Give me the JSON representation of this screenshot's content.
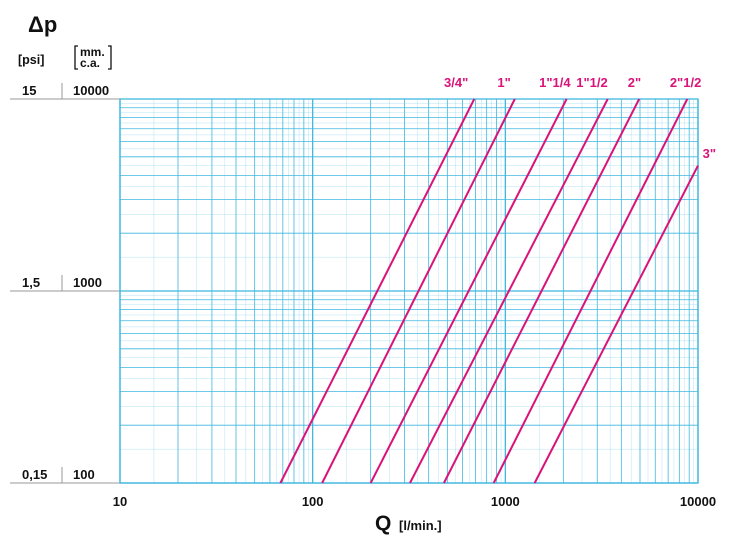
{
  "chart_data": {
    "type": "line",
    "title": "",
    "ylabel_symbol": "Δp",
    "y_unit_psi": "[psi]",
    "y_unit_mmca_line1": "mm.",
    "y_unit_mmca_line2": "c.a.",
    "xlabel": "Q",
    "xlabel_unit": "[l/min.]",
    "x_scale": "log",
    "y_scale": "log",
    "xlim": [
      10,
      10000
    ],
    "ylim": [
      100,
      10000
    ],
    "grid": true,
    "x_ticks": [
      {
        "value": 10,
        "label": "10"
      },
      {
        "value": 100,
        "label": "100"
      },
      {
        "value": 1000,
        "label": "1000"
      },
      {
        "value": 10000,
        "label": "10000"
      }
    ],
    "y_ticks": [
      {
        "value": 100,
        "label_psi": "0,15",
        "label_mmca": "100"
      },
      {
        "value": 1000,
        "label_psi": "1,5",
        "label_mmca": "1000"
      },
      {
        "value": 10000,
        "label_psi": "15",
        "label_mmca": "10000"
      }
    ],
    "series": [
      {
        "name": "3/4\"",
        "x": [
          68,
          690
        ],
        "y": [
          100,
          10000
        ]
      },
      {
        "name": "1\"",
        "x": [
          112,
          1120
        ],
        "y": [
          100,
          10000
        ]
      },
      {
        "name": "1\"1/4",
        "x": [
          200,
          2080
        ],
        "y": [
          100,
          10000
        ]
      },
      {
        "name": "1\"1/2",
        "x": [
          320,
          3400
        ],
        "y": [
          100,
          10000
        ]
      },
      {
        "name": "2\"",
        "x": [
          480,
          4950
        ],
        "y": [
          100,
          10000
        ]
      },
      {
        "name": "2\"1/2",
        "x": [
          870,
          8800
        ],
        "y": [
          100,
          10000
        ]
      },
      {
        "name": "3\"",
        "x": [
          1420,
          10000
        ],
        "y": [
          100,
          4500
        ]
      }
    ]
  },
  "colors": {
    "grid": "#3fb8e0",
    "series": "#d9137a",
    "text": "#111111"
  }
}
